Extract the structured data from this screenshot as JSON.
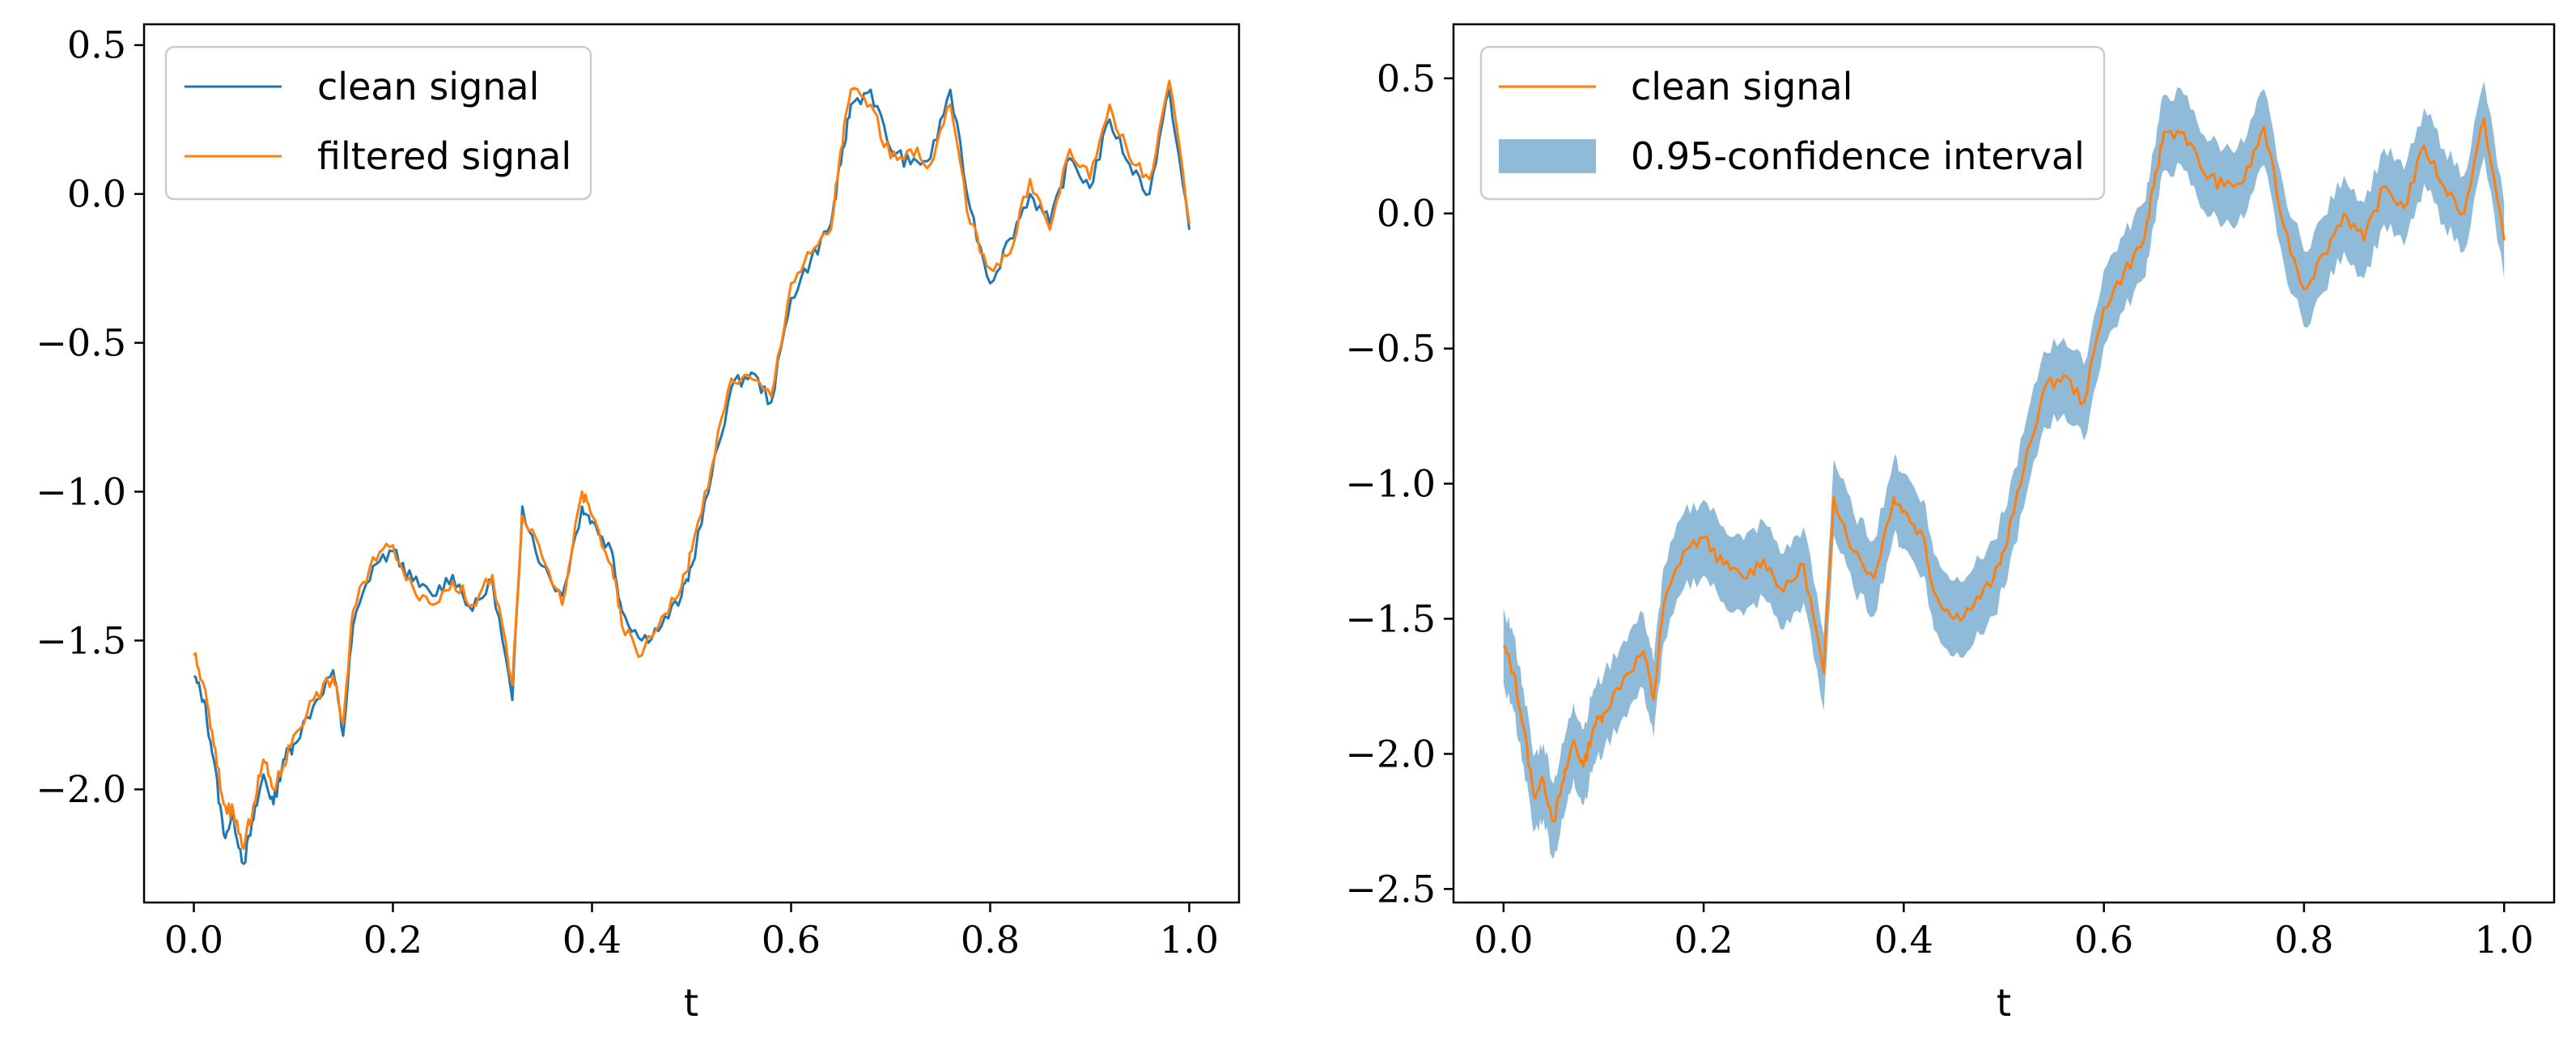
{
  "chart_data": [
    {
      "type": "line",
      "xlabel": "t",
      "ylabel": "",
      "xlim": [
        -0.05,
        1.05
      ],
      "ylim": [
        -2.38,
        0.57
      ],
      "xticks": [
        0.0,
        0.2,
        0.4,
        0.6,
        0.8,
        1.0
      ],
      "xtick_labels": [
        "0.0",
        "0.2",
        "0.4",
        "0.6",
        "0.8",
        "1.0"
      ],
      "yticks": [
        -2.0,
        -1.5,
        -1.0,
        -0.5,
        0.0,
        0.5
      ],
      "ytick_labels": [
        "−2.0",
        "−1.5",
        "−1.0",
        "−0.5",
        "0.0",
        "0.5"
      ],
      "grid": false,
      "legend": "upper-left",
      "series": [
        {
          "name": "clean signal",
          "color": "#1f77b4",
          "x": [
            0.0,
            0.01,
            0.02,
            0.03,
            0.04,
            0.05,
            0.06,
            0.07,
            0.08,
            0.09,
            0.1,
            0.12,
            0.14,
            0.15,
            0.16,
            0.18,
            0.2,
            0.22,
            0.24,
            0.26,
            0.28,
            0.3,
            0.32,
            0.33,
            0.35,
            0.37,
            0.39,
            0.4,
            0.42,
            0.43,
            0.45,
            0.47,
            0.49,
            0.5,
            0.52,
            0.54,
            0.56,
            0.58,
            0.6,
            0.62,
            0.64,
            0.65,
            0.66,
            0.68,
            0.7,
            0.72,
            0.74,
            0.76,
            0.78,
            0.8,
            0.82,
            0.84,
            0.86,
            0.88,
            0.9,
            0.92,
            0.94,
            0.96,
            0.98,
            1.0
          ],
          "values": [
            -1.62,
            -1.7,
            -1.9,
            -2.15,
            -2.1,
            -2.25,
            -2.1,
            -1.95,
            -2.05,
            -1.9,
            -1.85,
            -1.72,
            -1.6,
            -1.82,
            -1.45,
            -1.25,
            -1.2,
            -1.3,
            -1.35,
            -1.28,
            -1.4,
            -1.3,
            -1.7,
            -1.05,
            -1.25,
            -1.35,
            -1.05,
            -1.1,
            -1.2,
            -1.4,
            -1.5,
            -1.45,
            -1.35,
            -1.25,
            -0.95,
            -0.65,
            -0.6,
            -0.7,
            -0.35,
            -0.22,
            -0.1,
            0.1,
            0.3,
            0.35,
            0.15,
            0.1,
            0.12,
            0.35,
            -0.05,
            -0.3,
            -0.15,
            0.0,
            -0.1,
            0.12,
            0.02,
            0.25,
            0.1,
            0.0,
            0.35,
            -0.12
          ]
        },
        {
          "name": "filtered signal",
          "color": "#ff7f0e",
          "x": [
            0.0,
            0.01,
            0.02,
            0.03,
            0.04,
            0.05,
            0.06,
            0.07,
            0.08,
            0.09,
            0.1,
            0.12,
            0.14,
            0.15,
            0.16,
            0.18,
            0.2,
            0.22,
            0.24,
            0.26,
            0.28,
            0.3,
            0.32,
            0.33,
            0.35,
            0.37,
            0.39,
            0.4,
            0.42,
            0.43,
            0.45,
            0.47,
            0.49,
            0.5,
            0.52,
            0.54,
            0.56,
            0.58,
            0.6,
            0.62,
            0.64,
            0.65,
            0.66,
            0.68,
            0.7,
            0.72,
            0.74,
            0.76,
            0.78,
            0.8,
            0.82,
            0.84,
            0.86,
            0.88,
            0.9,
            0.92,
            0.94,
            0.96,
            0.98,
            1.0
          ],
          "values": [
            -1.55,
            -1.65,
            -1.85,
            -2.05,
            -2.08,
            -2.2,
            -2.05,
            -1.9,
            -2.0,
            -1.92,
            -1.82,
            -1.7,
            -1.62,
            -1.78,
            -1.4,
            -1.22,
            -1.18,
            -1.32,
            -1.38,
            -1.3,
            -1.38,
            -1.28,
            -1.65,
            -1.08,
            -1.22,
            -1.38,
            -1.0,
            -1.08,
            -1.25,
            -1.45,
            -1.55,
            -1.42,
            -1.32,
            -1.2,
            -0.92,
            -0.62,
            -0.62,
            -0.68,
            -0.3,
            -0.2,
            -0.12,
            0.15,
            0.35,
            0.3,
            0.12,
            0.15,
            0.1,
            0.3,
            -0.1,
            -0.25,
            -0.2,
            0.05,
            -0.12,
            0.15,
            0.05,
            0.3,
            0.12,
            0.05,
            0.38,
            -0.1
          ]
        }
      ]
    },
    {
      "type": "line",
      "xlabel": "t",
      "ylabel": "",
      "xlim": [
        -0.05,
        1.05
      ],
      "ylim": [
        -2.55,
        0.7
      ],
      "xticks": [
        0.0,
        0.2,
        0.4,
        0.6,
        0.8,
        1.0
      ],
      "xtick_labels": [
        "0.0",
        "0.2",
        "0.4",
        "0.6",
        "0.8",
        "1.0"
      ],
      "yticks": [
        -2.5,
        -2.0,
        -1.5,
        -1.0,
        -0.5,
        0.0,
        0.5
      ],
      "ytick_labels": [
        "−2.5",
        "−2.0",
        "−1.5",
        "−1.0",
        "−0.5",
        "0.0",
        "0.5"
      ],
      "grid": false,
      "legend": "upper-left",
      "series": [
        {
          "name": "clean signal",
          "color": "#ff7f0e",
          "x": [
            0.0,
            0.01,
            0.02,
            0.03,
            0.04,
            0.05,
            0.06,
            0.07,
            0.08,
            0.09,
            0.1,
            0.12,
            0.14,
            0.15,
            0.16,
            0.18,
            0.2,
            0.22,
            0.24,
            0.26,
            0.28,
            0.3,
            0.32,
            0.33,
            0.35,
            0.37,
            0.39,
            0.4,
            0.42,
            0.43,
            0.45,
            0.47,
            0.49,
            0.5,
            0.52,
            0.54,
            0.56,
            0.58,
            0.6,
            0.62,
            0.64,
            0.65,
            0.66,
            0.68,
            0.7,
            0.72,
            0.74,
            0.76,
            0.78,
            0.8,
            0.82,
            0.84,
            0.86,
            0.88,
            0.9,
            0.92,
            0.94,
            0.96,
            0.98,
            1.0
          ],
          "values": [
            -1.6,
            -1.7,
            -1.9,
            -2.15,
            -2.1,
            -2.25,
            -2.1,
            -1.95,
            -2.05,
            -1.9,
            -1.85,
            -1.72,
            -1.62,
            -1.8,
            -1.45,
            -1.25,
            -1.2,
            -1.3,
            -1.35,
            -1.28,
            -1.4,
            -1.3,
            -1.7,
            -1.05,
            -1.25,
            -1.35,
            -1.05,
            -1.1,
            -1.2,
            -1.4,
            -1.5,
            -1.45,
            -1.35,
            -1.25,
            -0.95,
            -0.65,
            -0.6,
            -0.7,
            -0.35,
            -0.22,
            -0.1,
            0.1,
            0.3,
            0.3,
            0.15,
            0.1,
            0.12,
            0.32,
            -0.05,
            -0.28,
            -0.15,
            0.0,
            -0.1,
            0.1,
            0.02,
            0.25,
            0.1,
            0.0,
            0.35,
            -0.1
          ]
        },
        {
          "name": "0.95-confidence interval",
          "color": "#1f77b4",
          "kind": "band",
          "half_width": 0.14
        }
      ]
    }
  ]
}
